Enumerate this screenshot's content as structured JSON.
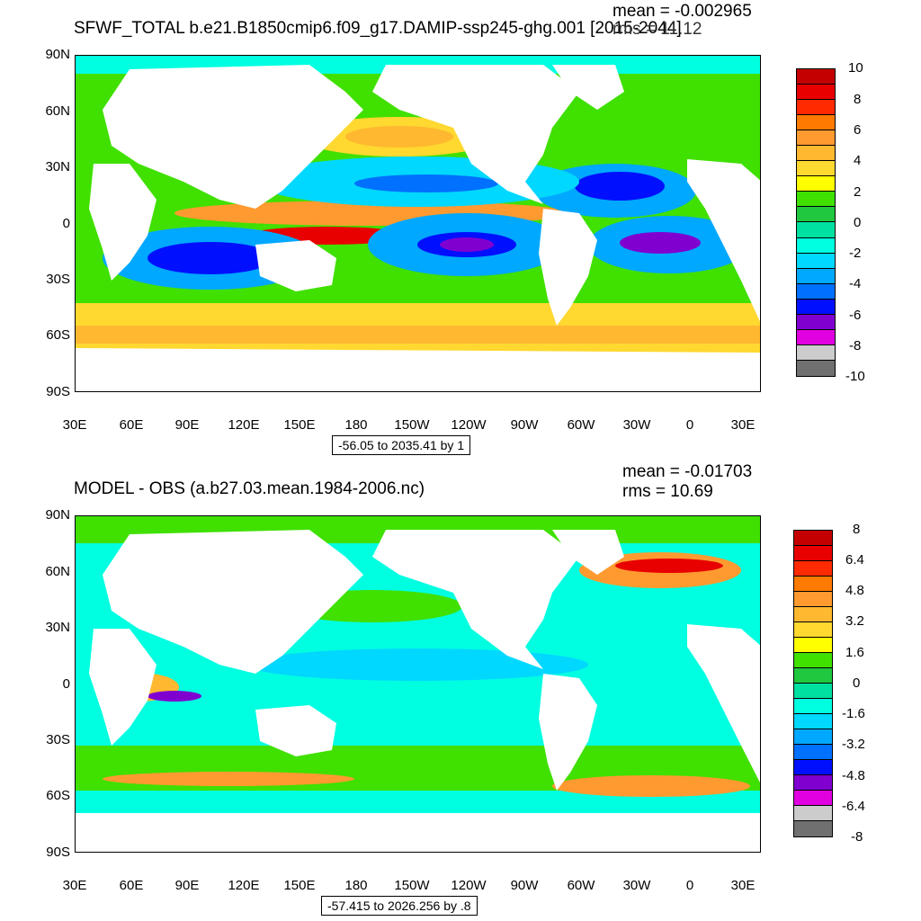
{
  "panels": [
    {
      "title": "SFWF_TOTAL b.e21.B1850cmip6.f09_g17.DAMIP-ssp245-ghg.001 [2015-2044]",
      "mean_label": "mean = -0.002965",
      "rms_label": "rms = 11.12",
      "range_label": "-56.05 to 2035.41 by 1",
      "colorbar_labels": [
        "10",
        "8",
        "6",
        "4",
        "2",
        "0",
        "-2",
        "-4",
        "-6",
        "-8",
        "-10"
      ]
    },
    {
      "title": "MODEL - OBS (a.b27.03.mean.1984-2006.nc)",
      "mean_label": "mean = -0.01703",
      "rms_label": "rms = 10.69",
      "range_label": "-57.415 to 2026.256 by .8",
      "colorbar_labels": [
        "8",
        "6.4",
        "4.8",
        "3.2",
        "1.6",
        "0",
        "-1.6",
        "-3.2",
        "-4.8",
        "-6.4",
        "-8"
      ]
    }
  ],
  "axes": {
    "lat_labels": [
      "90N",
      "60N",
      "30N",
      "0",
      "30S",
      "60S",
      "90S"
    ],
    "lon_labels": [
      "30E",
      "60E",
      "90E",
      "120E",
      "150E",
      "180",
      "150W",
      "120W",
      "90W",
      "60W",
      "30W",
      "0",
      "30E"
    ]
  },
  "colors": {
    "palette": [
      "#c40000",
      "#e80000",
      "#ff2a00",
      "#ff7a00",
      "#ff9a30",
      "#ffb830",
      "#ffd830",
      "#ffff00",
      "#40e000",
      "#20c840",
      "#00e0a0",
      "#00ffe0",
      "#00d8ff",
      "#00a8ff",
      "#0070ff",
      "#0010ff",
      "#8000d0",
      "#e000e0",
      "#cccccc",
      "#707070"
    ],
    "land": "#ffffff",
    "ocean_neutral": "#40e000"
  }
}
